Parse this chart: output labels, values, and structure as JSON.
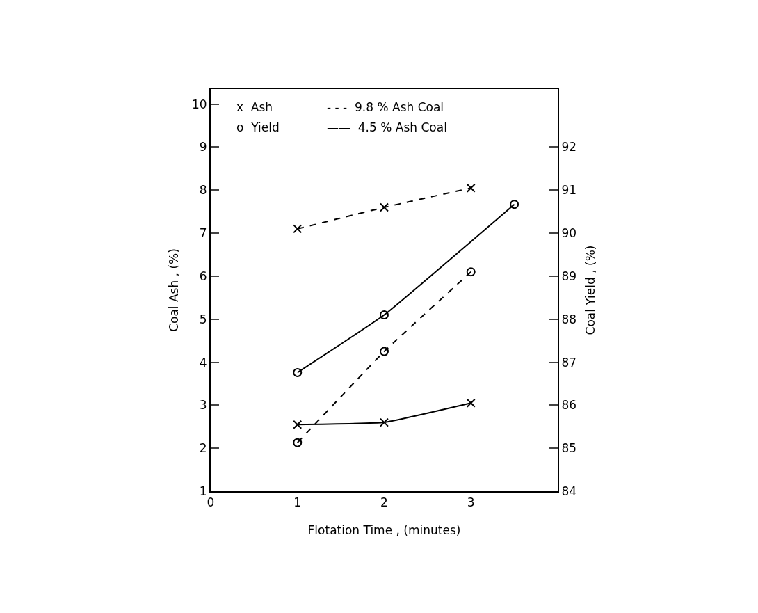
{
  "chart_data": {
    "type": "line",
    "xlabel": "Flotation Time , (minutes)",
    "ylabel": "Coal Ash , (%)",
    "y2label": "Coal Yield , (%)",
    "x": [
      1,
      2,
      3
    ],
    "xlim": [
      0,
      4
    ],
    "xticks": [
      0,
      1,
      2,
      3
    ],
    "ylim": [
      1,
      10.35
    ],
    "yticks": [
      1,
      2,
      3,
      4,
      5,
      6,
      7,
      8,
      9,
      10
    ],
    "y2lim": [
      84,
      93.35
    ],
    "y2ticks": [
      84,
      85,
      86,
      87,
      88,
      89,
      90,
      91,
      92
    ],
    "annotations": [
      "x  Ash",
      "- - -  9.8 % Ash Coal",
      "o  Yield",
      "——  4.5 % Ash Coal"
    ],
    "series": [
      {
        "color": "#000000",
        "marker": "cross",
        "line_style": "dashed",
        "values": [
          7.1,
          7.6,
          8.05
        ]
      },
      {
        "color": "#000000",
        "marker": "cross",
        "line_style": "solid",
        "values": [
          2.55,
          2.6,
          3.05
        ]
      },
      {
        "color": "#000000",
        "marker": "circle",
        "line_style": "dashed",
        "axis": "y2",
        "values": [
          85.13,
          87.25,
          89.1
        ]
      },
      {
        "color": "#000000",
        "marker": "circle",
        "line_style": "solid",
        "axis": "y2",
        "x": [
          1,
          2,
          3.5
        ],
        "values": [
          86.76,
          88.1,
          90.67
        ]
      }
    ]
  }
}
